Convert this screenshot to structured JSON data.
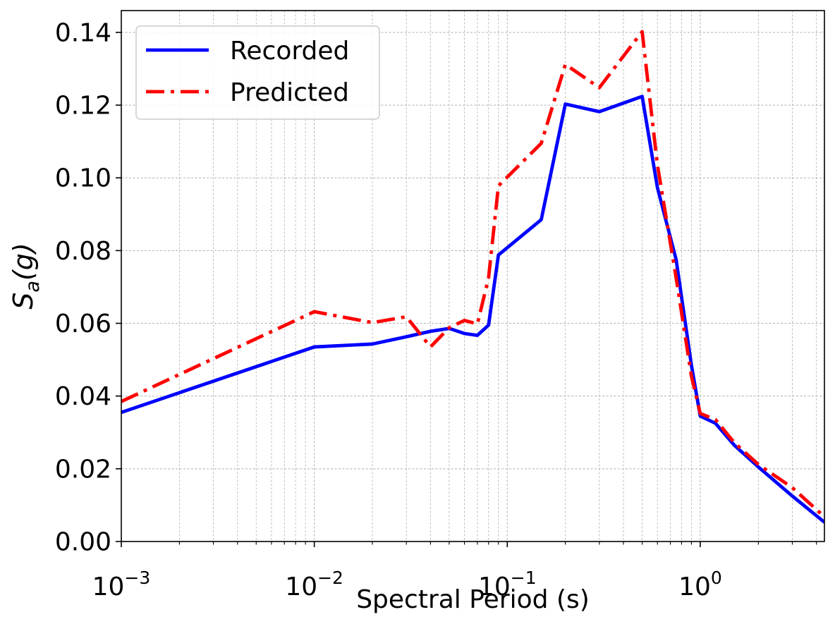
{
  "chart_data": {
    "type": "line",
    "xlabel": "Spectral Period (s)",
    "ylabel": {
      "base": "S",
      "subscript": "a",
      "rest": "(g)"
    },
    "xscale": "log",
    "xlim": [
      0.001,
      4.4
    ],
    "ylim": [
      0.0,
      0.146
    ],
    "grid": true,
    "grid_minor": true,
    "legend_placement": "top-left",
    "x_tick_labels": [
      {
        "base": "10",
        "exp": "−3",
        "value": 0.001
      },
      {
        "base": "10",
        "exp": "−2",
        "value": 0.01
      },
      {
        "base": "10",
        "exp": "−1",
        "value": 0.1
      },
      {
        "base": "10",
        "exp": "0",
        "value": 1
      }
    ],
    "y_tick_labels": [
      "0.00",
      "0.02",
      "0.04",
      "0.06",
      "0.08",
      "0.10",
      "0.12",
      "0.14"
    ],
    "y_tick_values": [
      0.0,
      0.02,
      0.04,
      0.06,
      0.08,
      0.1,
      0.12,
      0.14
    ],
    "series": [
      {
        "name": "Recorded",
        "color": "#0000ff",
        "style": "solid",
        "x": [
          0.001,
          0.01,
          0.02,
          0.03,
          0.04,
          0.05,
          0.06,
          0.07,
          0.08,
          0.09,
          0.15,
          0.2,
          0.3,
          0.5,
          0.6,
          0.75,
          0.9,
          1.0,
          1.2,
          1.5,
          2.0,
          3.0,
          4.4
        ],
        "y": [
          0.0355,
          0.0535,
          0.0543,
          0.0563,
          0.0578,
          0.0586,
          0.0572,
          0.0567,
          0.0595,
          0.0788,
          0.0885,
          0.1203,
          0.1182,
          0.1224,
          0.0973,
          0.0775,
          0.0485,
          0.0345,
          0.0325,
          0.0265,
          0.0205,
          0.0125,
          0.0053
        ]
      },
      {
        "name": "Predicted",
        "color": "#ff0000",
        "style": "dashdot",
        "x": [
          0.001,
          0.01,
          0.02,
          0.03,
          0.04,
          0.05,
          0.06,
          0.07,
          0.08,
          0.09,
          0.15,
          0.2,
          0.3,
          0.5,
          0.6,
          0.75,
          0.9,
          1.0,
          1.2,
          1.5,
          2.0,
          3.0,
          4.4
        ],
        "y": [
          0.0385,
          0.0632,
          0.0602,
          0.0618,
          0.0535,
          0.0588,
          0.0608,
          0.0598,
          0.0725,
          0.0978,
          0.1095,
          0.1312,
          0.1248,
          0.1402,
          0.1035,
          0.0725,
          0.0455,
          0.0352,
          0.0335,
          0.0272,
          0.0212,
          0.0148,
          0.0068
        ]
      }
    ]
  }
}
